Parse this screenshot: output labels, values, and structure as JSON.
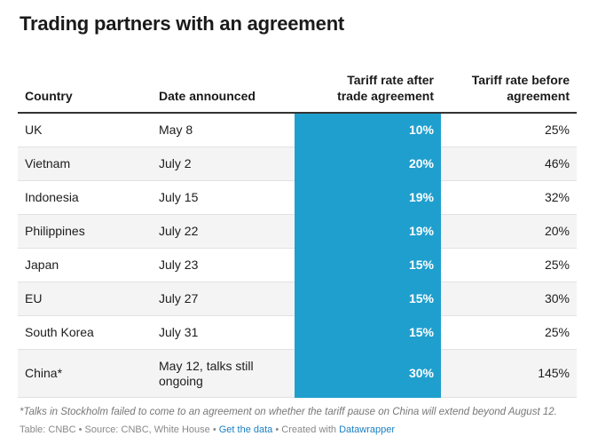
{
  "title": "Trading partners with an agreement",
  "table": {
    "headers": {
      "country": "Country",
      "date": "Date announced",
      "after_line1": "Tariff rate after",
      "after_line2": "trade agreement",
      "before_line1": "Tariff rate before",
      "before_line2": "agreement"
    },
    "rows": [
      {
        "country": "UK",
        "date": "May 8",
        "after": "10%",
        "before": "25%"
      },
      {
        "country": "Vietnam",
        "date": "July 2",
        "after": "20%",
        "before": "46%"
      },
      {
        "country": "Indonesia",
        "date": "July 15",
        "after": "19%",
        "before": "32%"
      },
      {
        "country": "Philippines",
        "date": "July 22",
        "after": "19%",
        "before": "20%"
      },
      {
        "country": "Japan",
        "date": "July 23",
        "after": "15%",
        "before": "25%"
      },
      {
        "country": "EU",
        "date": "July 27",
        "after": "15%",
        "before": "30%"
      },
      {
        "country": "South Korea",
        "date": "July 31",
        "after": "15%",
        "before": "25%"
      },
      {
        "country": "China*",
        "date_line1": "May 12, talks still",
        "date_line2": "ongoing",
        "after": "30%",
        "before": "145%"
      }
    ]
  },
  "notes": "*Talks in Stockholm failed to come to an agreement on whether the tariff pause on China will extend beyond August 12.",
  "footer": {
    "table_label": "Table: CNBC",
    "sep1": " • ",
    "source": "Source: CNBC, White House",
    "sep2": " • ",
    "get_data": "Get the data",
    "sep3": " • ",
    "created_with": "Created with ",
    "datawrapper": "Datawrapper"
  },
  "colors": {
    "highlight": "#1f9fce",
    "link": "#1a7fc1"
  }
}
